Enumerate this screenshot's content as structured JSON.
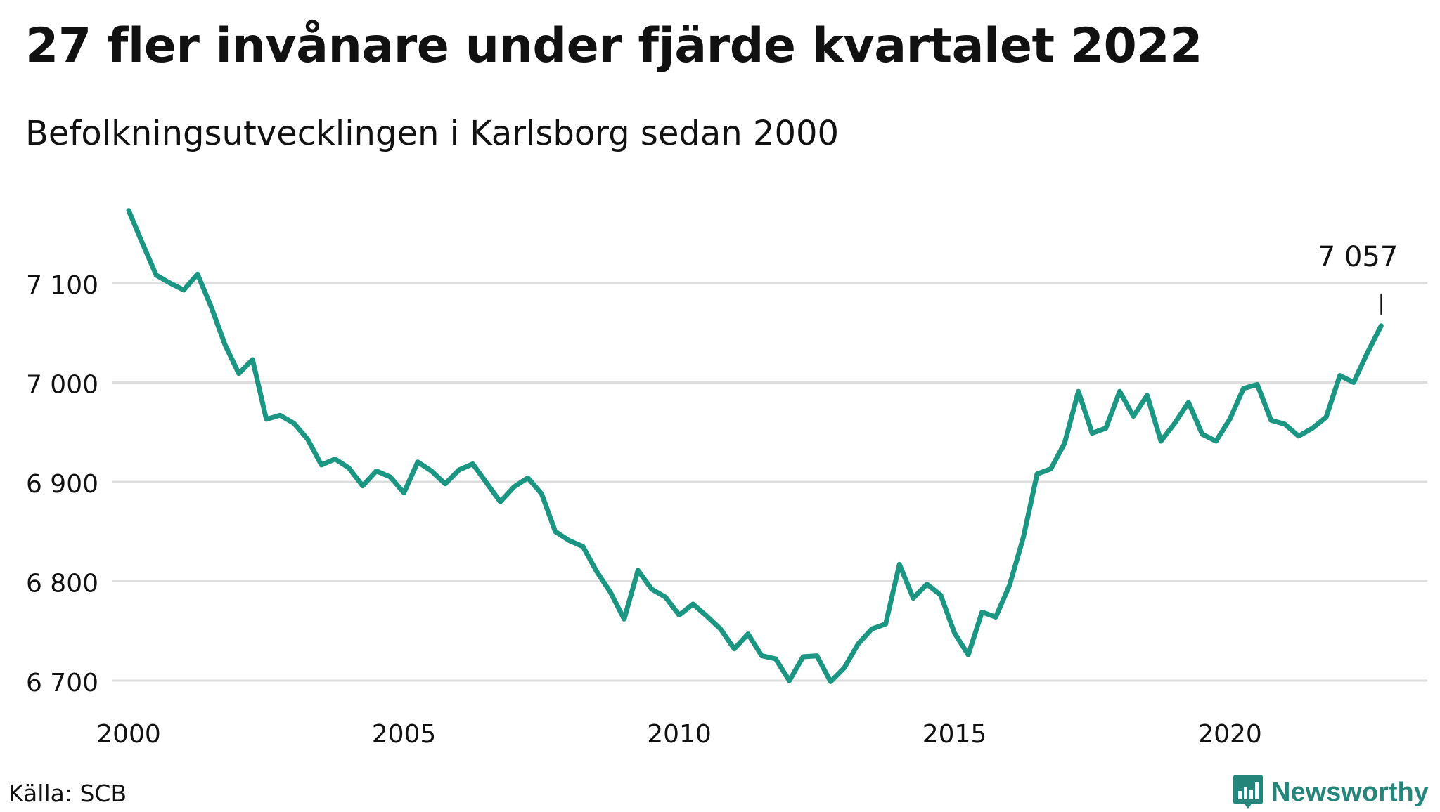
{
  "title": "27 fler invånare under fjärde kvartalet 2022",
  "subtitle": "Befolkningsutvecklingen i Karlsborg sedan 2000",
  "source": "Källa: SCB",
  "brand": {
    "name": "Newsworthy",
    "icon": "bar-chart-logo-icon",
    "color": "#24857a"
  },
  "chart_data": {
    "type": "line",
    "ylim": [
      6690,
      7175
    ],
    "y_ticks": [
      6700,
      6800,
      6900,
      7000,
      7100
    ],
    "y_tick_labels": [
      "6 700",
      "6 800",
      "6 900",
      "7 000",
      "7 100"
    ],
    "x_ticks": [
      2000,
      2005,
      2010,
      2015,
      2020
    ],
    "x_tick_labels": [
      "2000",
      "2005",
      "2010",
      "2015",
      "2020"
    ],
    "grid": true,
    "line_color": "#1a9683",
    "annotation": {
      "text": "7 057",
      "x": "2022-Q4"
    },
    "series": [
      {
        "values": [
          7173,
          7140,
          7108,
          7100,
          7093,
          7109,
          7076,
          7038,
          7009,
          7023,
          6963,
          6967,
          6959,
          6943,
          6917,
          6923,
          6914,
          6896,
          6911,
          6905,
          6889,
          6920,
          6911,
          6898,
          6912,
          6918,
          6899,
          6880,
          6895,
          6904,
          6888,
          6850,
          6841,
          6835,
          6810,
          6789,
          6762,
          6811,
          6792,
          6784,
          6766,
          6777,
          6765,
          6752,
          6732,
          6747,
          6725,
          6722,
          6700,
          6724,
          6725,
          6699,
          6713,
          6737,
          6752,
          6757,
          6817,
          6783,
          6797,
          6786,
          6748,
          6726,
          6769,
          6764,
          6796,
          6844,
          6908,
          6913,
          6939,
          6991,
          6949,
          6954,
          6991,
          6966,
          6987,
          6941,
          6959,
          6980,
          6948,
          6941,
          6963,
          6994,
          6998,
          6962,
          6958,
          6946,
          6954,
          6965,
          7007,
          7000,
          7030,
          7057
        ]
      }
    ]
  }
}
